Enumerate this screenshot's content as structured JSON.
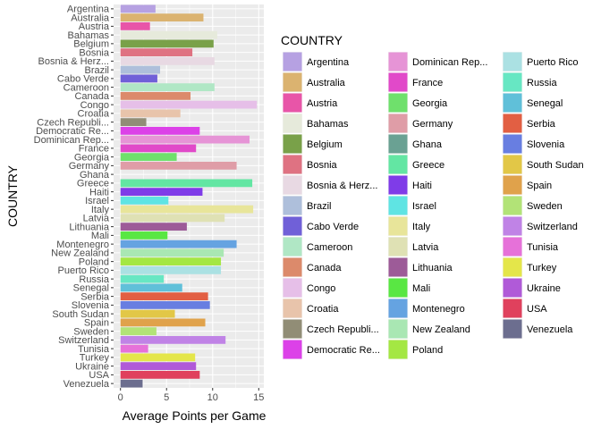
{
  "chart_data": {
    "type": "bar",
    "orientation": "horizontal",
    "xlabel": "Average Points per Game",
    "ylabel": "COUNTRY",
    "xlim": [
      0,
      15.4
    ],
    "xticks": [
      0,
      5,
      10,
      15
    ],
    "grid": true,
    "legend_title": "COUNTRY",
    "legend_placement": "right",
    "categories": [
      "Argentina",
      "Australia",
      "Austria",
      "Bahamas",
      "Belgium",
      "Bosnia",
      "Bosnia & Herz...",
      "Brazil",
      "Cabo Verde",
      "Cameroon",
      "Canada",
      "Congo",
      "Croatia",
      "Czech Republi...",
      "Democratic Re...",
      "Dominican Rep...",
      "France",
      "Georgia",
      "Germany",
      "Ghana",
      "Greece",
      "Haiti",
      "Israel",
      "Italy",
      "Latvia",
      "Lithuania",
      "Mali",
      "Montenegro",
      "New Zealand",
      "Poland",
      "Puerto Rico",
      "Russia",
      "Senegal",
      "Serbia",
      "Slovenia",
      "South Sudan",
      "Spain",
      "Sweden",
      "Switzerland",
      "Tunisia",
      "Turkey",
      "Ukraine",
      "USA",
      "Venezuela"
    ],
    "y_tick_labels": [
      "Argentina",
      "Australia",
      "Austria",
      "Bahamas",
      "Belgium",
      "Bosnia",
      "Bosnia & Herz...",
      "Brazil",
      "Cabo Verde",
      "Cameroon",
      "Canada",
      "Congo",
      "Croatia",
      "Czech Republi...",
      "Democratic Re...",
      "Dominican Rep...",
      "France",
      "Georgia",
      "Germany",
      "Ghana",
      "Greece",
      "Haiti",
      "Israel",
      "Italy",
      "Latvia",
      "Lithuania",
      "Mali",
      "Montenegro",
      "New Zealand",
      "Poland",
      "Puerto Rico",
      "Russia",
      "Senegal",
      "Serbia",
      "Slovenia",
      "South Sudan",
      "Spain",
      "Sweden",
      "Switzerland",
      "Tunisia",
      "Turkey",
      "Ukraine",
      "USA",
      "Venezuela"
    ],
    "values": [
      3.8,
      9.0,
      3.2,
      10.5,
      10.1,
      7.8,
      10.2,
      4.3,
      4.0,
      10.2,
      7.6,
      14.8,
      6.5,
      2.8,
      8.6,
      14.0,
      8.2,
      6.1,
      12.6,
      0,
      14.3,
      8.9,
      5.2,
      14.4,
      11.3,
      7.2,
      5.1,
      12.6,
      11.2,
      10.9,
      10.9,
      4.7,
      6.7,
      9.5,
      9.7,
      5.9,
      9.2,
      3.9,
      11.4,
      3.0,
      8.1,
      8.2,
      8.6,
      2.4
    ],
    "colors": [
      "#b6a1e2",
      "#dbb370",
      "#e855a8",
      "#e6eadb",
      "#79a149",
      "#df7282",
      "#e8d9e3",
      "#aebfdb",
      "#7060d8",
      "#b0e7c5",
      "#dc8a6b",
      "#e6bfe8",
      "#e8c4ab",
      "#918d76",
      "#dc41e8",
      "#e694d6",
      "#e149c9",
      "#6fe06c",
      "#df9da7",
      "#6aa193",
      "#63e6a3",
      "#7f3ce8",
      "#5fe4e3",
      "#e8e59a",
      "#dfe1b4",
      "#9d5b98",
      "#59e743",
      "#65a3e1",
      "#a9e7b3",
      "#a4e743",
      "#abe1e3",
      "#67e7c3",
      "#60c0d9",
      "#e25f43",
      "#687ee1",
      "#e2c747",
      "#e0a24b",
      "#b2e377",
      "#c083e6",
      "#e671d9",
      "#e4e64a",
      "#b05ad8",
      "#e0415d",
      "#6c6e8f"
    ],
    "legend_columns": [
      [
        "Argentina",
        "Australia",
        "Austria",
        "Bahamas",
        "Belgium",
        "Bosnia",
        "Bosnia & Herz...",
        "Brazil",
        "Cabo Verde",
        "Cameroon",
        "Canada",
        "Congo",
        "Croatia",
        "Czech Republi...",
        "Democratic Re..."
      ],
      [
        "Dominican Rep...",
        "France",
        "Georgia",
        "Germany",
        "Ghana",
        "Greece",
        "Haiti",
        "Israel",
        "Italy",
        "Latvia",
        "Lithuania",
        "Mali",
        "Montenegro",
        "New Zealand",
        "Poland"
      ],
      [
        "Puerto Rico",
        "Russia",
        "Senegal",
        "Serbia",
        "Slovenia",
        "South Sudan",
        "Spain",
        "Sweden",
        "Switzerland",
        "Tunisia",
        "Turkey",
        "Ukraine",
        "USA",
        "Venezuela"
      ]
    ]
  }
}
